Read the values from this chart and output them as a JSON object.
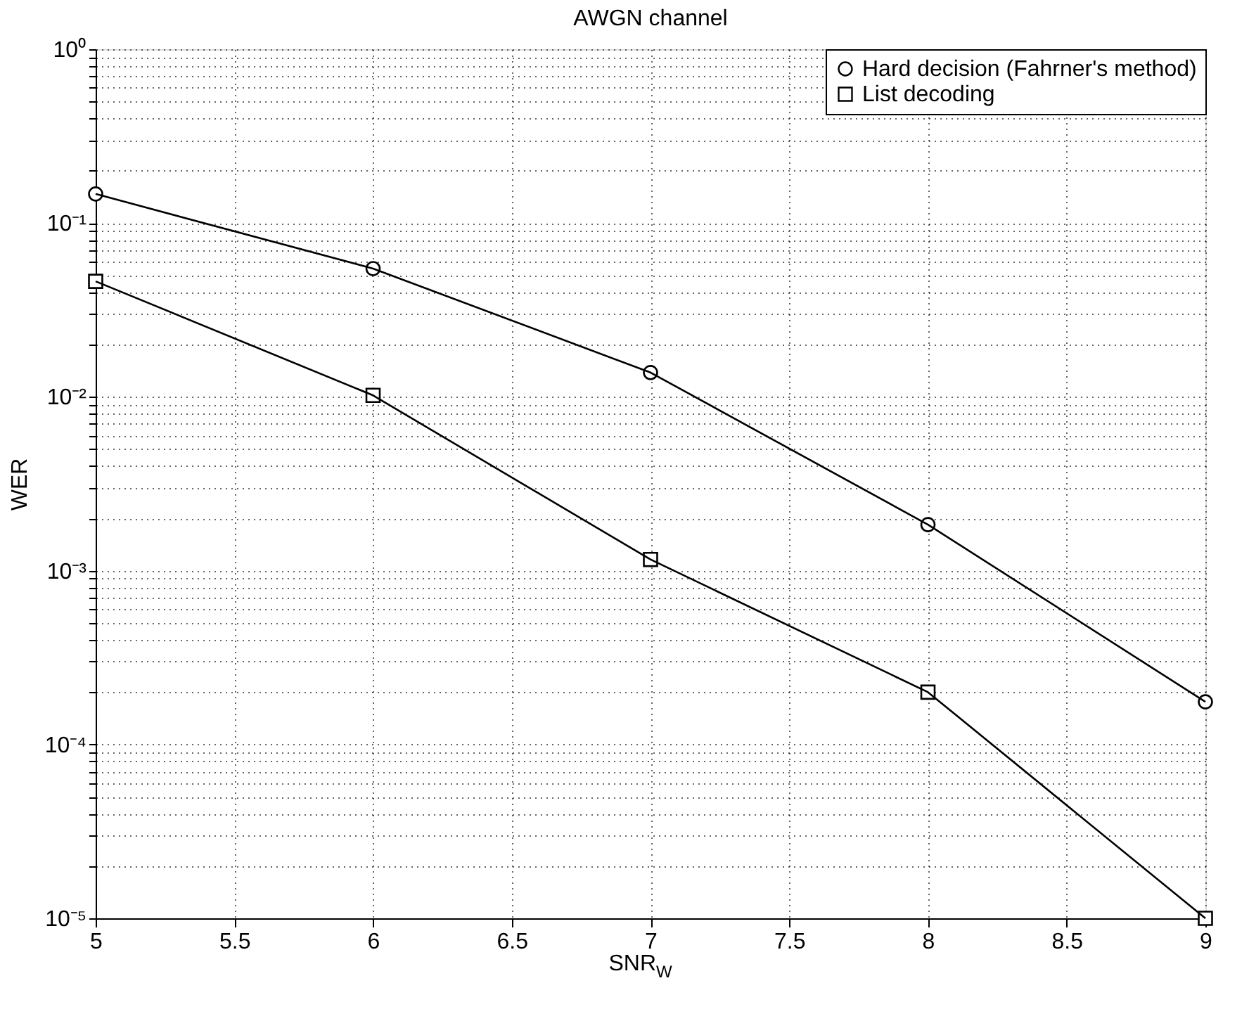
{
  "chart_data": {
    "type": "line",
    "title": "AWGN channel",
    "xlabel": "SNR$_{W}$",
    "ylabel": "WER",
    "x": [
      5,
      6,
      7,
      8,
      9
    ],
    "series": [
      {
        "name": "Hard decision (Fahrner's method)",
        "color": "#000000",
        "marker": "circle",
        "values": [
          0.147,
          0.0547,
          0.0138,
          0.00184,
          0.000176
        ]
      },
      {
        "name": "List decoding",
        "color": "#000000",
        "marker": "square",
        "values": [
          0.0462,
          0.0102,
          0.00116,
          0.0002,
          1e-05
        ]
      }
    ],
    "log": "y",
    "xlim": [
      5,
      9
    ],
    "xticks": [
      5,
      5.5,
      6,
      6.5,
      7,
      7.5,
      8,
      8.5,
      9
    ],
    "ylim": [
      1e-05,
      1
    ],
    "yticks": [
      {
        "value": 1e-05,
        "label": "10⁻⁵"
      },
      {
        "value": 2e-05,
        "label": null
      },
      {
        "value": 3e-05,
        "label": null
      },
      {
        "value": 4e-05,
        "label": null
      },
      {
        "value": 5e-05,
        "label": null
      },
      {
        "value": 6e-05,
        "label": null
      },
      {
        "value": 7e-05,
        "label": null
      },
      {
        "value": 8e-05,
        "label": null
      },
      {
        "value": 9e-05,
        "label": null
      },
      {
        "value": 0.0001,
        "label": "10⁻⁴"
      },
      {
        "value": 0.0002,
        "label": null
      },
      {
        "value": 0.0003,
        "label": null
      },
      {
        "value": 0.0004,
        "label": null
      },
      {
        "value": 0.0005,
        "label": null
      },
      {
        "value": 0.0006,
        "label": null
      },
      {
        "value": 0.0007,
        "label": null
      },
      {
        "value": 0.0008,
        "label": null
      },
      {
        "value": 0.0009,
        "label": null
      },
      {
        "value": 0.001,
        "label": "10⁻³"
      },
      {
        "value": 0.002,
        "label": null
      },
      {
        "value": 0.003,
        "label": null
      },
      {
        "value": 0.004,
        "label": null
      },
      {
        "value": 0.005,
        "label": null
      },
      {
        "value": 0.006,
        "label": null
      },
      {
        "value": 0.007,
        "label": null
      },
      {
        "value": 0.008,
        "label": null
      },
      {
        "value": 0.009,
        "label": null
      },
      {
        "value": 0.01,
        "label": "10⁻²"
      },
      {
        "value": 0.02,
        "label": null
      },
      {
        "value": 0.03,
        "label": null
      },
      {
        "value": 0.04,
        "label": null
      },
      {
        "value": 0.05,
        "label": null
      },
      {
        "value": 0.06,
        "label": null
      },
      {
        "value": 0.07,
        "label": null
      },
      {
        "value": 0.08,
        "label": null
      },
      {
        "value": 0.09,
        "label": null
      },
      {
        "value": 0.1,
        "label": "10⁻¹"
      },
      {
        "value": 0.2,
        "label": null
      },
      {
        "value": 0.3,
        "label": null
      },
      {
        "value": 0.4,
        "label": null
      },
      {
        "value": 0.5,
        "label": null
      },
      {
        "value": 0.6,
        "label": null
      },
      {
        "value": 0.7,
        "label": null
      },
      {
        "value": 0.8,
        "label": null
      },
      {
        "value": 0.9,
        "label": null
      },
      {
        "value": 1,
        "label": "10⁰"
      }
    ],
    "grid": true,
    "legend": "top right"
  }
}
